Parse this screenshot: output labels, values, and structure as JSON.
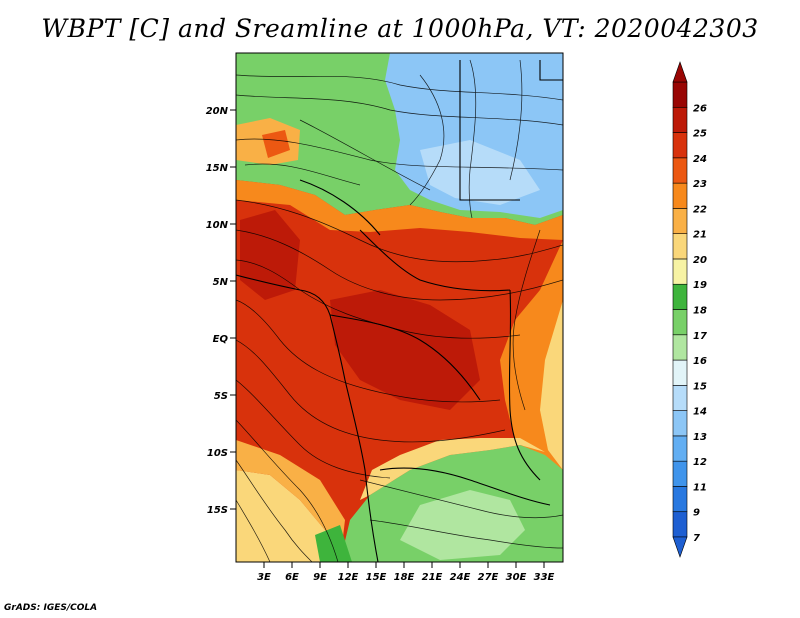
{
  "title": "WBPT [C] and Sreamline at 1000hPa, VT: 2020042303",
  "credit": "GrADS: IGES/COLA",
  "map": {
    "lat_labels": [
      "20N",
      "15N",
      "10N",
      "5N",
      "EQ",
      "5S",
      "10S",
      "15S"
    ],
    "lon_labels": [
      "3E",
      "6E",
      "9E",
      "12E",
      "15E",
      "18E",
      "21E",
      "24E",
      "27E",
      "30E",
      "33E"
    ],
    "lat_range": [
      -20,
      24.5
    ],
    "lon_range": [
      0,
      35
    ],
    "features": [
      "streamlines",
      "coastlines",
      "country-borders"
    ]
  },
  "colorbar": {
    "labels": [
      "7",
      "9",
      "11",
      "12",
      "13",
      "14",
      "15",
      "16",
      "17",
      "18",
      "19",
      "20",
      "21",
      "22",
      "23",
      "24",
      "25",
      "26"
    ],
    "colors": [
      "#1e5fd2",
      "#2878e0",
      "#3f94eb",
      "#62aef2",
      "#8cc6f6",
      "#b6dcf9",
      "#e2f4f8",
      "#b0e6a0",
      "#78d068",
      "#3eb43c",
      "#f7f3a4",
      "#fad77a",
      "#f9b046",
      "#f7891c",
      "#ec5812",
      "#d8320c",
      "#bd1a08",
      "#990604"
    ],
    "extend": "both"
  }
}
